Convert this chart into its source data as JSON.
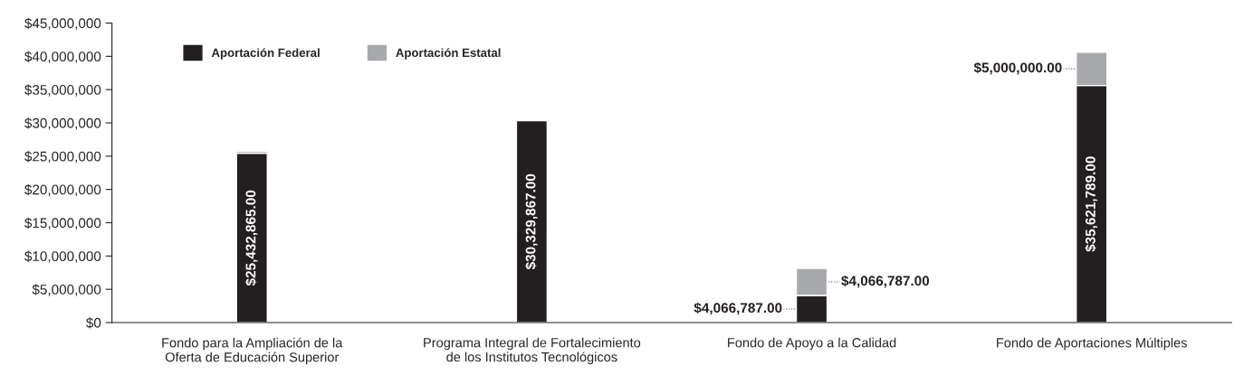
{
  "chart_data": {
    "type": "bar",
    "stacked": true,
    "categories": [
      "Fondo para la Ampliación de la\nOferta de Educación Superior",
      "Programa Integral de Fortalecimiento\nde los Institutos Tecnológicos",
      "Fondo de Apoyo a la Calidad",
      "Fondo de Aportaciones Múltiples"
    ],
    "series": [
      {
        "name": "Aportación Federal",
        "color": "#231f20",
        "values": [
          25432865,
          30329867,
          4066787,
          35621789
        ],
        "value_labels": [
          "$25,432,865.00",
          "$30,329,867.00",
          "$4,066,787.00",
          "$35,621,789.00"
        ]
      },
      {
        "name": "Aportación Estatal",
        "color": "#a7a9ac",
        "values": [
          300000,
          null,
          4066787,
          5000000
        ],
        "value_labels": [
          null,
          null,
          "$4,066,787.00",
          "$5,000,000.00"
        ]
      }
    ],
    "ylim": [
      0,
      45000000
    ],
    "yticks": [
      {
        "value": 0,
        "label": "$0"
      },
      {
        "value": 5000000,
        "label": "$5,000,000"
      },
      {
        "value": 10000000,
        "label": "$10,000,000"
      },
      {
        "value": 15000000,
        "label": "$15,000,000"
      },
      {
        "value": 20000000,
        "label": "$20,000,000"
      },
      {
        "value": 25000000,
        "label": "$25,000,000"
      },
      {
        "value": 30000000,
        "label": "$30,000,000"
      },
      {
        "value": 35000000,
        "label": "$35,000,000"
      },
      {
        "value": 40000000,
        "label": "$40,000,000"
      },
      {
        "value": 45000000,
        "label": "$45,000,000"
      }
    ],
    "grid": false,
    "legend": "top left"
  }
}
